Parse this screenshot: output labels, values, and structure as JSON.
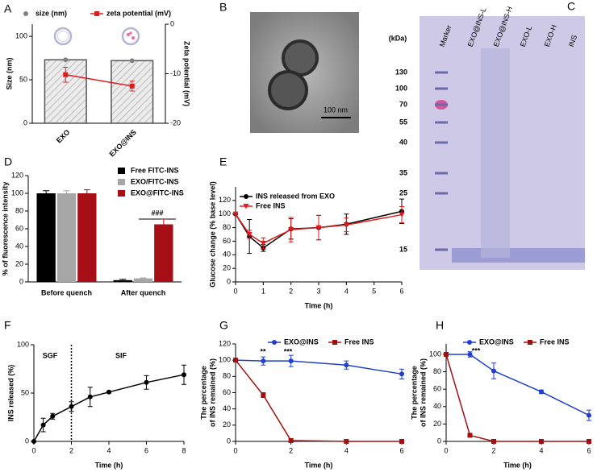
{
  "chart_data": [
    {
      "panel": "A",
      "type": "bar",
      "categories": [
        "EXO",
        "EXO@INS"
      ],
      "ylim": [
        0,
        114
      ],
      "yticks": [
        0,
        50,
        100
      ],
      "ylabel": "Size (nm)",
      "y2lim": [
        -20,
        0
      ],
      "y2ticks": [
        0,
        -10,
        -20
      ],
      "y2label": "Zeta potential (mV)",
      "hatch": true,
      "series": [
        {
          "name": "size (nm)",
          "type": "bar",
          "color": "#d9d9d9",
          "marker": "circle",
          "marker_color": "#808080",
          "values": [
            73,
            72
          ]
        },
        {
          "name": "zeta potential (mV)",
          "type": "line",
          "axis": "y2",
          "color": "#e31a1c",
          "marker": "square",
          "values": [
            -10.2,
            -12.5
          ],
          "errors": [
            1.5,
            1
          ]
        }
      ]
    },
    {
      "panel": "D",
      "type": "bar",
      "categories": [
        "Before quench",
        "After quench"
      ],
      "ylim": [
        0,
        120
      ],
      "yticks": [
        0,
        20,
        40,
        60,
        80,
        100,
        120
      ],
      "ylabel": "% of fluorescence intensity",
      "annotations": [
        "###"
      ],
      "series": [
        {
          "name": "Free FITC-INS",
          "color": "#000000",
          "values": [
            100,
            2
          ],
          "errors": [
            3,
            1
          ]
        },
        {
          "name": "EXO/FITC-INS",
          "color": "#a6a6a6",
          "values": [
            100,
            4
          ],
          "errors": [
            3,
            0.5
          ]
        },
        {
          "name": "EXO@FITC-INS",
          "color": "#a50f15",
          "values": [
            100,
            65
          ],
          "errors": [
            4,
            6
          ]
        }
      ]
    },
    {
      "panel": "E",
      "type": "line",
      "x": [
        0,
        0.5,
        1,
        2,
        3,
        4,
        6
      ],
      "xlim": [
        0,
        6
      ],
      "xticks": [
        0,
        1,
        2,
        3,
        4,
        5,
        6
      ],
      "ylim": [
        0,
        140
      ],
      "yticks": [
        0,
        20,
        40,
        60,
        80,
        100,
        120
      ],
      "xlabel": "Time (h)",
      "ylabel": "Glucose change (% base level)",
      "series": [
        {
          "name": "INS released from EXO",
          "color": "#000000",
          "marker": "circle",
          "values": [
            100,
            67,
            50,
            78,
            80,
            85,
            104
          ],
          "errors": [
            0,
            25,
            5,
            15,
            18,
            15,
            18
          ]
        },
        {
          "name": "Free INS",
          "color": "#e31a1c",
          "marker": "triangle-down",
          "values": [
            100,
            70,
            57,
            77,
            80,
            84,
            99
          ],
          "errors": [
            0,
            6,
            8,
            18,
            18,
            10,
            12
          ]
        }
      ]
    },
    {
      "panel": "F",
      "type": "line",
      "x": [
        0,
        0.5,
        1,
        2,
        3,
        4,
        6,
        8
      ],
      "xlim": [
        0,
        8
      ],
      "xticks": [
        0,
        2,
        4,
        6,
        8
      ],
      "ylim": [
        0,
        100
      ],
      "yticks": [
        0,
        50,
        100
      ],
      "xlabel": "Time (h)",
      "ylabel": "INS released (%)",
      "divider_x": 2,
      "annotations": [
        "SGF",
        "SIF"
      ],
      "series": [
        {
          "color": "#000000",
          "marker": "circle",
          "values": [
            0,
            17,
            26,
            36,
            46,
            51,
            61,
            69
          ],
          "errors": [
            0,
            7,
            3,
            5,
            10,
            1,
            7,
            10
          ]
        }
      ]
    },
    {
      "panel": "G",
      "type": "line",
      "x": [
        0,
        1,
        2,
        4,
        6
      ],
      "xlim": [
        0,
        6
      ],
      "xticks": [
        0,
        2,
        4,
        6
      ],
      "ylim": [
        0,
        120
      ],
      "yticks": [
        0,
        20,
        40,
        60,
        80,
        100,
        120
      ],
      "xlabel": "Time (h)",
      "ylabel": [
        "The percentage",
        "of INS remained (%)"
      ],
      "annotations": [
        "**",
        "***"
      ],
      "series": [
        {
          "name": "EXO@INS",
          "color": "#1f3fcc",
          "marker": "circle",
          "values": [
            100,
            99,
            99,
            94,
            83
          ],
          "errors": [
            0,
            5,
            7,
            5,
            6
          ]
        },
        {
          "name": "Free INS",
          "color": "#a01010",
          "marker": "square",
          "values": [
            100,
            57,
            1,
            0,
            0
          ],
          "errors": [
            0,
            3,
            2,
            1,
            1
          ]
        }
      ]
    },
    {
      "panel": "H",
      "type": "line",
      "x": [
        0,
        1,
        2,
        4,
        6
      ],
      "xlim": [
        0,
        6
      ],
      "xticks": [
        0,
        2,
        4,
        6
      ],
      "ylim": [
        0,
        112
      ],
      "yticks": [
        0,
        20,
        40,
        60,
        80,
        100
      ],
      "xlabel": "Time (h)",
      "ylabel": [
        "The percentage",
        "of INS remained (%)"
      ],
      "annotations": [
        "***"
      ],
      "series": [
        {
          "name": "EXO@INS",
          "color": "#1f3fcc",
          "marker": "circle",
          "values": [
            100,
            100,
            81,
            57,
            30
          ],
          "errors": [
            0,
            3,
            9,
            2,
            6
          ]
        },
        {
          "name": "Free INS",
          "color": "#a01010",
          "marker": "square",
          "values": [
            100,
            7,
            0,
            0,
            0
          ],
          "errors": [
            0,
            1,
            0,
            0,
            0
          ]
        }
      ]
    }
  ],
  "images": [
    {
      "panel": "B",
      "scale_bar": "100 nm"
    },
    {
      "panel": "C",
      "unit": "(kDa)",
      "lanes": [
        "Marker",
        "EXO@INS-L",
        "EXO@INS-H",
        "EXO-L",
        "EXO-H",
        "INS"
      ],
      "markers": [
        "130",
        "100",
        "70",
        "55",
        "40",
        "35",
        "25",
        "15"
      ]
    }
  ]
}
